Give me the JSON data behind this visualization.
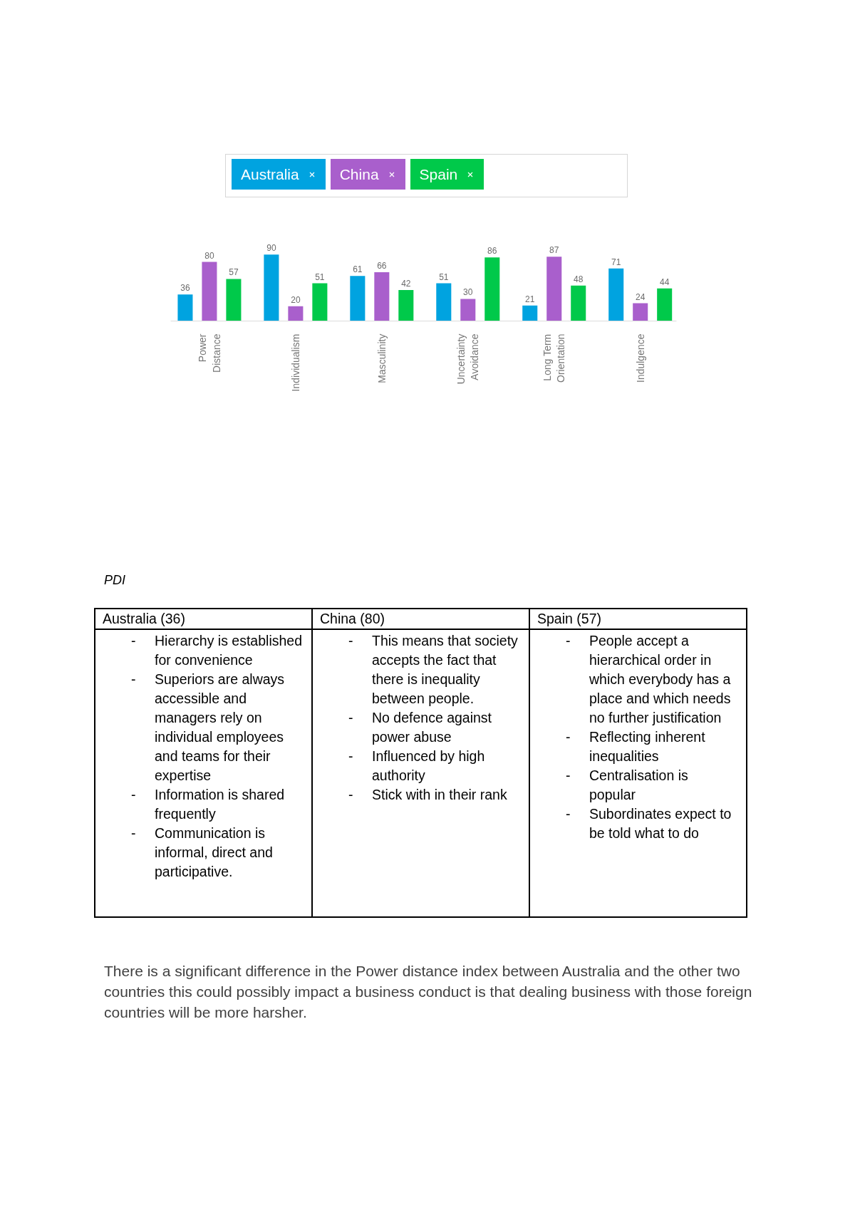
{
  "chart_data": {
    "type": "bar",
    "categories": [
      "Power Distance",
      "Individualism",
      "Masculinity",
      "Uncertainty Avoidance",
      "Long Term Orientation",
      "Indulgence"
    ],
    "series": [
      {
        "name": "Australia",
        "color": "#00a3e0",
        "values": [
          36,
          90,
          61,
          51,
          21,
          71
        ]
      },
      {
        "name": "China",
        "color": "#a95fcc",
        "values": [
          80,
          20,
          66,
          30,
          87,
          24
        ]
      },
      {
        "name": "Spain",
        "color": "#00c94a",
        "values": [
          57,
          51,
          42,
          86,
          48,
          44
        ]
      }
    ],
    "data_labels": true,
    "legend": "top",
    "annotations": [
      "PDI",
      "Australia (36)",
      "China (80)",
      "Spain (57)",
      "- Hierarchy is established for convenience\n- Superiors are always accessible and managers rely on individual employees and teams for their expertise\n- Information is shared frequently\n- Communication is informal, direct and participative.",
      "- This means that society accepts the fact that there is inequality between people.\n- No defence against power abuse\n- Influenced by high authority\n- Stick with in their rank",
      "- People accept a hierarchical order in which everybody has a place and which needs no further justification\n- Reflecting inherent inequalities\n- Centralisation is popular\n- Subordinates expect to be told what to do",
      "There is a significant difference in the Power distance index between Australia and the other two countries this could possibly impact a business conduct is that dealing business with those foreign countries will be more harsher."
    ]
  }
}
